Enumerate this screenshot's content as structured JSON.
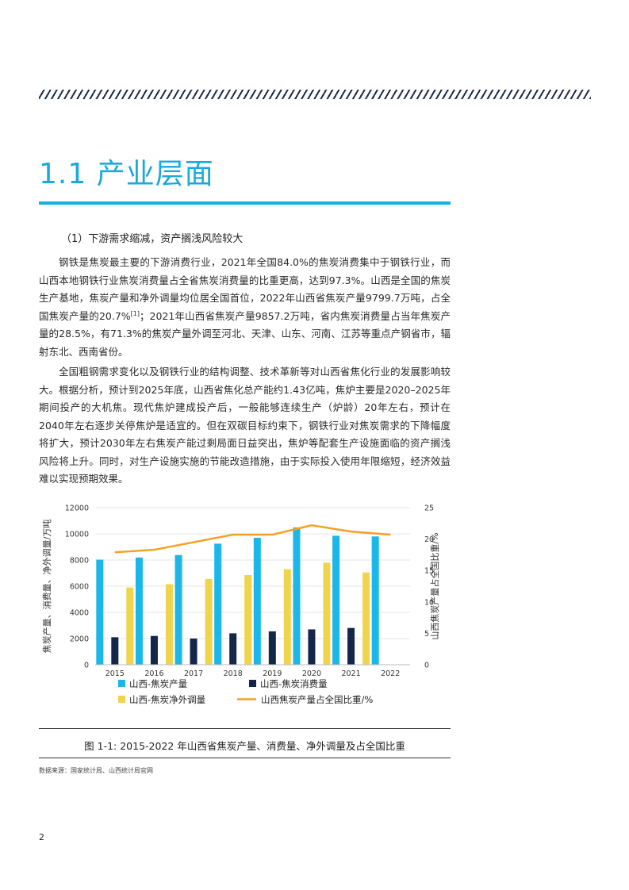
{
  "section": {
    "number_title": "1.1  产业层面"
  },
  "subheading": "（1）下游需求缩减，资产搁浅风险较大",
  "paragraph1": {
    "text_before_ref": "钢铁是焦炭最主要的下游消费行业，2021年全国84.0%的焦炭消费集中于钢铁行业，而山西本地钢铁行业焦炭消费量占全省焦炭消费量的比重更高，达到97.3%。山西是全国的焦炭生产基地，焦炭产量和净外调量均位居全国首位，2022年山西省焦炭产量9799.7万吨，占全国焦炭产量的20.7%",
    "ref": "[1]",
    "text_after_ref": "；2021年山西省焦炭产量9857.2万吨，省内焦炭消费量占当年焦炭产量的28.5%，有71.3%的焦炭产量外调至河北、天津、山东、河南、江苏等重点产钢省市，辐射东北、西南省份。"
  },
  "paragraph2": "全国粗钢需求变化以及钢铁行业的结构调整、技术革新等对山西省焦化行业的发展影响较大。根据分析，预计到2025年底，山西省焦化总产能约1.43亿吨，焦炉主要是2020–2025年期间投产的大机焦。现代焦炉建成投产后，一般能够连续生产（炉龄）20年左右，预计在2040年左右逐步关停焦炉是适宜的。但在双碳目标约束下，钢铁行业对焦炭需求的下降幅度将扩大，预计2030年左右焦炭产能过剩局面日益突出，焦炉等配套生产设施面临的资产搁浅风险将上升。同时，对生产设施实施的节能改造措施，由于实际投入使用年限缩短，经济效益难以实现预期效果。",
  "colors": {
    "production": "#1ab7ea",
    "consumption": "#14264a",
    "net_export": "#f0d54c",
    "share": "#f4a024"
  },
  "chart_data": {
    "type": "bar",
    "categories": [
      "2015",
      "2016",
      "2017",
      "2018",
      "2019",
      "2020",
      "2021",
      "2022"
    ],
    "series": [
      {
        "name": "山西-焦炭产量",
        "values": [
          8030,
          8190,
          8380,
          9250,
          9700,
          10490,
          9857,
          9800
        ]
      },
      {
        "name": "山西-焦炭消费量",
        "values": [
          2100,
          2200,
          2000,
          2400,
          2550,
          2700,
          2810,
          null
        ]
      },
      {
        "name": "山西-焦炭净外调量",
        "values": [
          5900,
          6150,
          6550,
          6850,
          7300,
          7800,
          7050,
          null
        ]
      },
      {
        "name": "山西焦炭产量占全国比重/%",
        "type": "line",
        "axis": "right",
        "values": [
          17.9,
          18.3,
          19.5,
          20.7,
          20.7,
          22.2,
          21.2,
          20.7
        ]
      }
    ],
    "ylabel": "焦炭产量、消费量、净外调量/万吨",
    "y2label": "山西焦炭产量占全国比重/%",
    "ylim": [
      0,
      12000
    ],
    "y2lim": [
      0,
      25
    ],
    "yticks": [
      "0",
      "2000",
      "4000",
      "6000",
      "8000",
      "10000",
      "12000"
    ],
    "y2ticks": [
      "0",
      "5",
      "10",
      "15",
      "20",
      "25"
    ],
    "legend_position": "bottom",
    "grid": true
  },
  "figure_caption": "图 1-1: 2015-2022 年山西省焦炭产量、消费量、净外调量及占全国比重",
  "source_note": "数据来源：国家统计局、山西统计局官网",
  "page_number": "2"
}
